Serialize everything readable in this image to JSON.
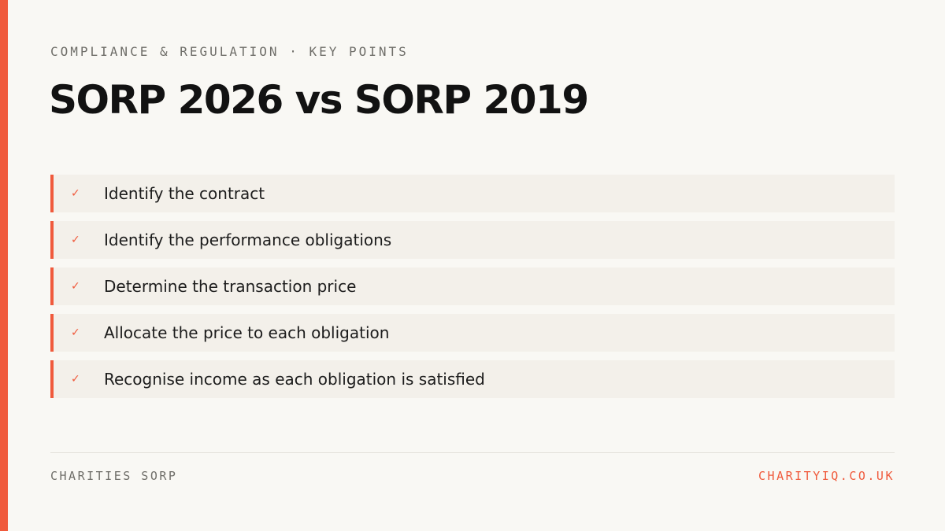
{
  "header": {
    "eyebrow": "COMPLIANCE & REGULATION · KEY POINTS",
    "title": "SORP 2026 vs SORP 2019"
  },
  "points": [
    {
      "icon": "check-icon",
      "glyph": "✓",
      "text": "Identify the contract"
    },
    {
      "icon": "check-icon",
      "glyph": "✓",
      "text": "Identify the performance obligations"
    },
    {
      "icon": "check-icon",
      "glyph": "✓",
      "text": "Determine the transaction price"
    },
    {
      "icon": "check-icon",
      "glyph": "✓",
      "text": "Allocate the price to each obligation"
    },
    {
      "icon": "check-icon",
      "glyph": "✓",
      "text": "Recognise income as each obligation is satisfied"
    }
  ],
  "footer": {
    "left": "CHARITIES SORP",
    "right": "CHARITYIQ.CO.UK"
  },
  "colors": {
    "accent": "#f05a3c",
    "background": "#f9f8f4",
    "row_background": "#f3f0ea",
    "title": "#121212",
    "muted": "#6f6e69"
  }
}
